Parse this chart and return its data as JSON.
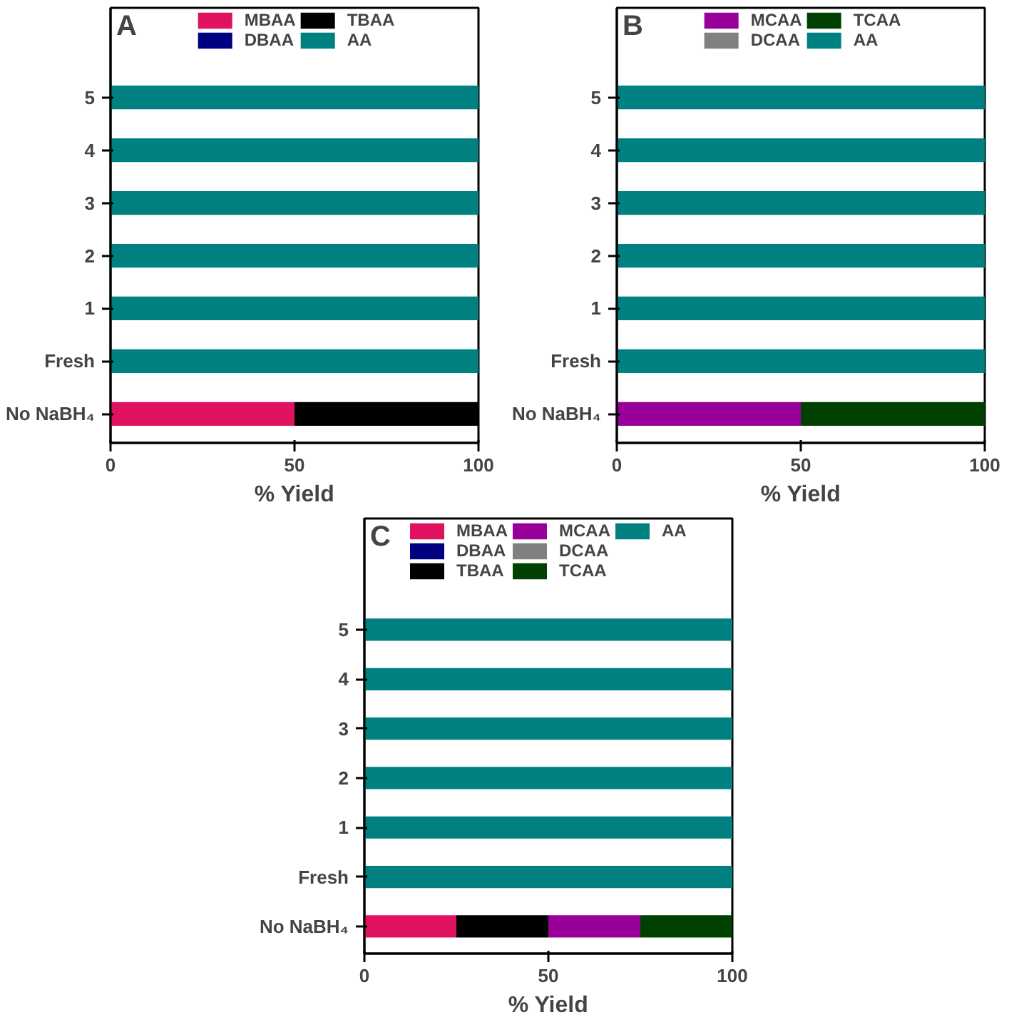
{
  "chart_data": [
    {
      "type": "bar",
      "orientation": "horizontal",
      "stacked": true,
      "title": "A",
      "xlabel": "% Yield",
      "categories": [
        "5",
        "4",
        "3",
        "2",
        "1",
        "Fresh",
        "No NaBH₄"
      ],
      "xlim": [
        0,
        100
      ],
      "xticks": [
        0,
        50,
        100
      ],
      "legend": "top",
      "grid": false,
      "series": [
        {
          "name": "MBAA",
          "color": "#e0115f",
          "values": [
            0,
            0,
            0,
            0,
            0,
            0,
            50
          ]
        },
        {
          "name": "DBAA",
          "color": "#000080",
          "values": [
            0,
            0,
            0,
            0,
            0,
            0,
            0
          ]
        },
        {
          "name": "TBAA",
          "color": "#000000",
          "values": [
            0,
            0,
            0,
            0,
            0,
            0,
            50
          ]
        },
        {
          "name": "AA",
          "color": "#008080",
          "values": [
            100,
            100,
            100,
            100,
            100,
            100,
            0
          ]
        }
      ]
    },
    {
      "type": "bar",
      "orientation": "horizontal",
      "stacked": true,
      "title": "B",
      "xlabel": "% Yield",
      "categories": [
        "5",
        "4",
        "3",
        "2",
        "1",
        "Fresh",
        "No NaBH₄"
      ],
      "xlim": [
        0,
        100
      ],
      "xticks": [
        0,
        50,
        100
      ],
      "legend": "top",
      "grid": false,
      "series": [
        {
          "name": "MCAA",
          "color": "#990099",
          "values": [
            0,
            0,
            0,
            0,
            0,
            0,
            50
          ]
        },
        {
          "name": "DCAA",
          "color": "#808080",
          "values": [
            0,
            0,
            0,
            0,
            0,
            0,
            0
          ]
        },
        {
          "name": "TCAA",
          "color": "#004000",
          "values": [
            0,
            0,
            0,
            0,
            0,
            0,
            50
          ]
        },
        {
          "name": "AA",
          "color": "#008080",
          "values": [
            100,
            100,
            100,
            100,
            100,
            100,
            0
          ]
        }
      ]
    },
    {
      "type": "bar",
      "orientation": "horizontal",
      "stacked": true,
      "title": "C",
      "xlabel": "% Yield",
      "categories": [
        "5",
        "4",
        "3",
        "2",
        "1",
        "Fresh",
        "No NaBH₄"
      ],
      "xlim": [
        0,
        100
      ],
      "xticks": [
        0,
        50,
        100
      ],
      "legend": "top",
      "grid": false,
      "series": [
        {
          "name": "MBAA",
          "color": "#e0115f",
          "values": [
            0,
            0,
            0,
            0,
            0,
            0,
            25
          ]
        },
        {
          "name": "DBAA",
          "color": "#000080",
          "values": [
            0,
            0,
            0,
            0,
            0,
            0,
            0
          ]
        },
        {
          "name": "TBAA",
          "color": "#000000",
          "values": [
            0,
            0,
            0,
            0,
            0,
            0,
            25
          ]
        },
        {
          "name": "MCAA",
          "color": "#990099",
          "values": [
            0,
            0,
            0,
            0,
            0,
            0,
            25
          ]
        },
        {
          "name": "DCAA",
          "color": "#808080",
          "values": [
            0,
            0,
            0,
            0,
            0,
            0,
            0
          ]
        },
        {
          "name": "TCAA",
          "color": "#004000",
          "values": [
            0,
            0,
            0,
            0,
            0,
            0,
            25
          ]
        },
        {
          "name": "AA",
          "color": "#008080",
          "values": [
            100,
            100,
            100,
            100,
            100,
            100,
            0
          ]
        }
      ]
    }
  ]
}
